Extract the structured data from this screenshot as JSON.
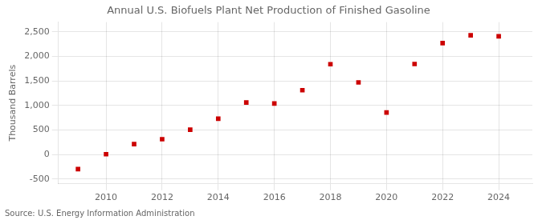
{
  "chart_data": {
    "type": "scatter",
    "title": "Annual U.S. Biofuels Plant Net Production of Finished Gasoline",
    "ylabel": "Thousand Barrels",
    "source": "Source: U.S. Energy Information Administration",
    "x": [
      2009,
      2010,
      2011,
      2012,
      2013,
      2014,
      2015,
      2016,
      2017,
      2018,
      2019,
      2020,
      2021,
      2022,
      2023,
      2024
    ],
    "values": [
      -300,
      5,
      210,
      310,
      505,
      730,
      1060,
      1040,
      1310,
      1840,
      1470,
      855,
      1845,
      2270,
      2430,
      2410
    ],
    "color": "#cc0000",
    "marker": "square",
    "xlim": [
      2008.3,
      2025.2
    ],
    "xticks": [
      2010,
      2012,
      2014,
      2016,
      2018,
      2020,
      2022,
      2024
    ],
    "ylim": [
      -600,
      2700
    ],
    "yticks": [
      -500,
      0,
      500,
      {
        "value": 1000,
        "label": "1,000"
      },
      {
        "value": 1500,
        "label": "1,500"
      },
      {
        "value": 2000,
        "label": "2,000"
      },
      {
        "value": 2500,
        "label": "2,500"
      }
    ],
    "grid": true
  }
}
